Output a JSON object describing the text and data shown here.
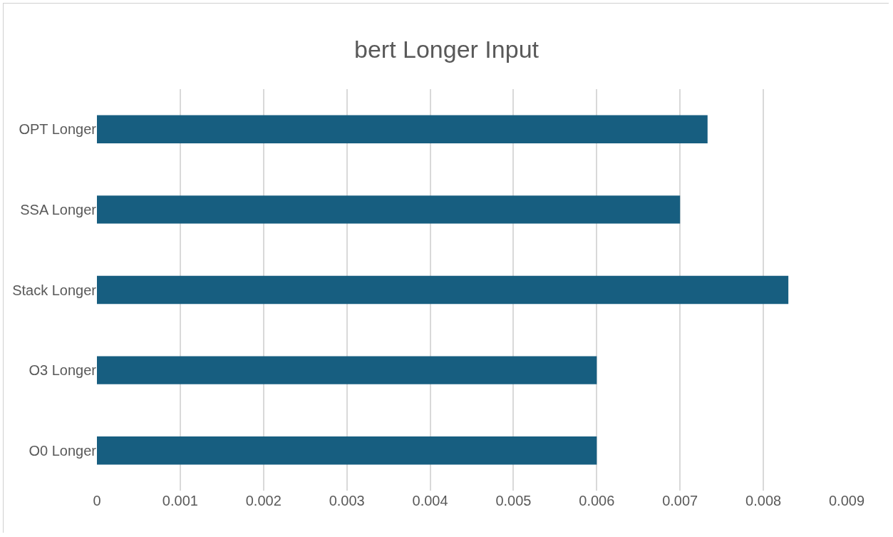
{
  "chart_data": {
    "type": "bar",
    "orientation": "horizontal",
    "title": "bert Longer Input",
    "categories": [
      "OPT Longer",
      "SSA Longer",
      "Stack Longer",
      "O3 Longer",
      "O0 Longer"
    ],
    "values": [
      0.00733,
      0.007,
      0.0083,
      0.006,
      0.006
    ],
    "color": "#175e80",
    "xlim": [
      0,
      0.009
    ],
    "xticks": [
      0,
      0.001,
      0.002,
      0.003,
      0.004,
      0.005,
      0.006,
      0.007,
      0.008,
      0.009
    ],
    "grid": "x"
  }
}
